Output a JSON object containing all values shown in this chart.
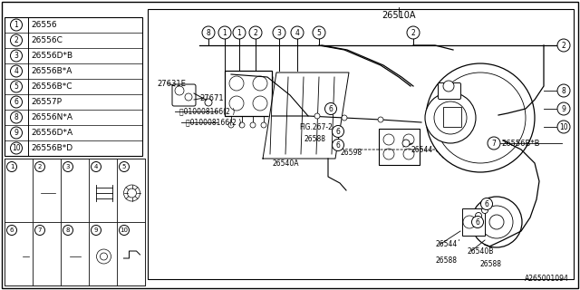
{
  "bg_color": "#ffffff",
  "line_color": "#000000",
  "text_color": "#000000",
  "title_text": "26510A",
  "part_number_bottom": "A265001094",
  "legend_items": [
    {
      "num": "1",
      "part": "26556"
    },
    {
      "num": "2",
      "part": "26556C"
    },
    {
      "num": "3",
      "part": "26556D*B"
    },
    {
      "num": "4",
      "part": "26556B*A"
    },
    {
      "num": "5",
      "part": "26556B*C"
    },
    {
      "num": "6",
      "part": "26557P"
    },
    {
      "num": "8",
      "part": "26556N*A"
    },
    {
      "num": "9",
      "part": "26556D*A"
    },
    {
      "num": "10",
      "part": "26556B*D"
    }
  ]
}
